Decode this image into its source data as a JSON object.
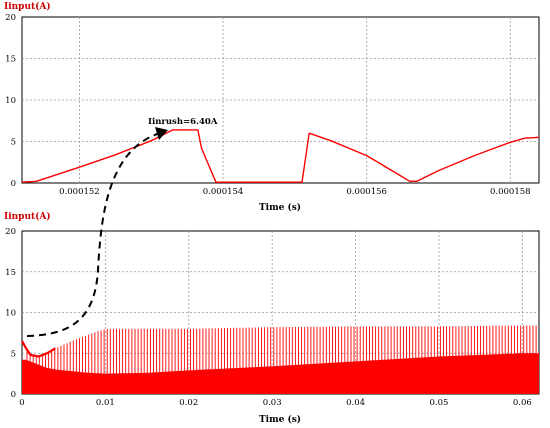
{
  "chart_data": [
    {
      "type": "line",
      "title": "Iinput(A)",
      "xlabel": "Time (s)",
      "ylabel": "",
      "xlim": [
        0.0001512,
        0.0001584
      ],
      "ylim": [
        0,
        20
      ],
      "yticks": [
        0,
        5,
        10,
        15,
        20
      ],
      "xticks": [
        0.000152,
        0.000154,
        0.000156,
        0.000158
      ],
      "xtick_labels": [
        "0.000152",
        "0.000154",
        "0.000156",
        "0.000158"
      ],
      "grid": true,
      "series": [
        {
          "color": "#ff0000",
          "x": [
            0.0001512,
            0.0001514,
            0.000152,
            0.0001525,
            0.000153,
            0.0001533,
            0.00015365,
            0.0001537,
            0.0001539,
            0.000154,
            0.0001551,
            0.0001552,
            0.0001555,
            0.000156,
            0.0001566,
            0.0001567,
            0.000157,
            0.0001575,
            0.000158,
            0.0001582,
            0.0001584
          ],
          "y": [
            0.1,
            0.2,
            1.9,
            3.4,
            5.1,
            6.4,
            6.4,
            4.2,
            0.1,
            0.1,
            0.1,
            6.0,
            5.1,
            3.3,
            0.2,
            0.2,
            1.5,
            3.3,
            4.9,
            5.4,
            5.5
          ]
        }
      ],
      "annotations": [
        {
          "text": "Iinrush=6.40A"
        }
      ]
    },
    {
      "type": "line",
      "title": "Iinput(A)",
      "xlabel": "Time (s)",
      "ylabel": "",
      "xlim": [
        0,
        0.062
      ],
      "ylim": [
        0,
        20
      ],
      "yticks": [
        0,
        5,
        10,
        15,
        20
      ],
      "xticks": [
        0,
        0.01,
        0.02,
        0.03,
        0.04,
        0.05,
        0.06
      ],
      "xtick_labels": [
        "0",
        "0.01",
        "0.02",
        "0.03",
        "0.04",
        "0.05",
        "0.06"
      ],
      "grid": true,
      "series": [
        {
          "color": "#ff0000",
          "envelope_x": [
            0,
            0.0005,
            0.001,
            0.002,
            0.003,
            0.004,
            0.006,
            0.008,
            0.01,
            0.015,
            0.02,
            0.03,
            0.04,
            0.05,
            0.06,
            0.062
          ],
          "envelope_max": [
            6.5,
            5.6,
            4.8,
            4.6,
            5.0,
            5.6,
            6.5,
            7.3,
            8.0,
            8.0,
            8.0,
            8.2,
            8.3,
            8.3,
            8.4,
            8.4
          ],
          "envelope_min": [
            0,
            0,
            0,
            0,
            0,
            0,
            0,
            0,
            0,
            0,
            0,
            0,
            0,
            0,
            0,
            0
          ],
          "ripple_trough": [
            4.2,
            4.2,
            4.0,
            3.6,
            3.2,
            3.0,
            2.8,
            2.6,
            2.5,
            2.6,
            2.9,
            3.4,
            4.0,
            4.6,
            5.0,
            5.0
          ]
        }
      ]
    }
  ]
}
